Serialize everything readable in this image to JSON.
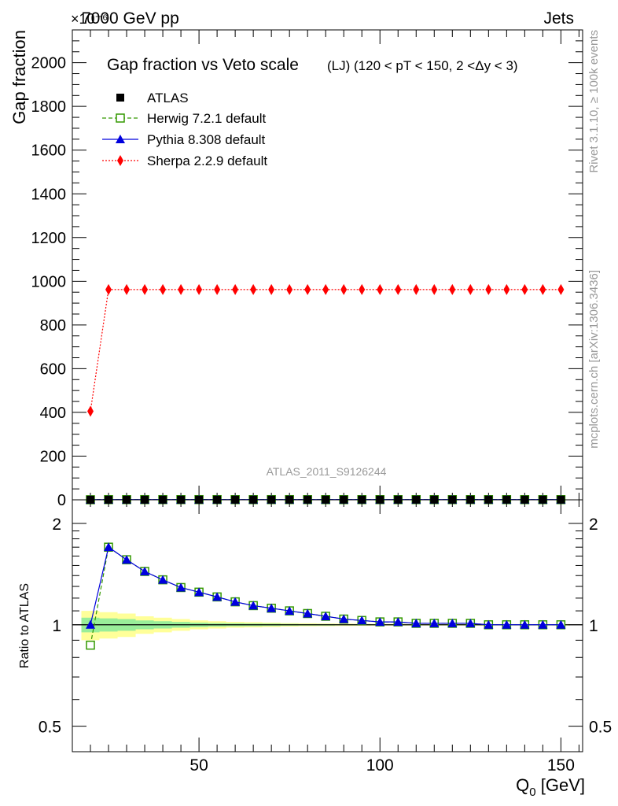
{
  "header": {
    "left": "7000 GeV pp",
    "right": "Jets",
    "exponent_label": "×10⁻⁶"
  },
  "side_text": {
    "rivet": "Rivet 3.1.10, ≥ 100k events",
    "mcplots": "mcplots.cern.ch [arXiv:1306.3436]"
  },
  "chart_data": [
    {
      "type": "line",
      "panel": "main",
      "title": "Gap fraction vs Veto scale",
      "subtitle": "(LJ) (120 < pT < 150, 2 <Δy < 3)",
      "ylabel": "Gap fraction",
      "y_multiplier_label": "×10⁻⁶",
      "xlim": [
        15,
        156
      ],
      "ylim": [
        0,
        2150
      ],
      "yticks": [
        0,
        200,
        400,
        600,
        800,
        1000,
        1200,
        1400,
        1600,
        1800,
        2000
      ],
      "xticks": [
        50,
        100,
        150
      ],
      "watermark": "ATLAS_2011_S9126244",
      "legend_position": "top-left",
      "x": [
        20,
        25,
        30,
        35,
        40,
        45,
        50,
        55,
        60,
        65,
        70,
        75,
        80,
        85,
        90,
        95,
        100,
        105,
        110,
        115,
        120,
        125,
        130,
        135,
        140,
        145,
        150
      ],
      "series": [
        {
          "name": "ATLAS",
          "color": "#000000",
          "marker": "square-filled",
          "line": "none",
          "values": [
            0.5,
            0.6,
            0.6,
            0.7,
            0.7,
            0.7,
            0.8,
            0.8,
            0.8,
            0.8,
            0.9,
            0.9,
            0.9,
            0.9,
            0.9,
            0.9,
            0.9,
            0.9,
            0.9,
            0.9,
            0.9,
            0.9,
            0.9,
            0.9,
            0.9,
            0.9,
            0.9
          ]
        },
        {
          "name": "Herwig 7.2.1 default",
          "color": "#339900",
          "marker": "square-open",
          "line": "dashed",
          "values": [
            0.4,
            1.0,
            0.9,
            1.0,
            1.0,
            0.9,
            1.0,
            1.0,
            0.9,
            0.9,
            1.0,
            1.0,
            0.9,
            0.9,
            0.9,
            0.9,
            0.9,
            0.9,
            0.9,
            0.9,
            0.9,
            0.9,
            0.9,
            0.9,
            0.9,
            0.9,
            0.9
          ]
        },
        {
          "name": "Pythia 8.308 default",
          "color": "#0000dd",
          "marker": "triangle-filled",
          "line": "solid",
          "values": [
            0.5,
            1.0,
            0.9,
            1.0,
            1.0,
            0.9,
            1.0,
            1.0,
            0.9,
            0.9,
            1.0,
            1.0,
            0.9,
            0.9,
            0.9,
            0.9,
            0.9,
            0.9,
            0.9,
            0.9,
            0.9,
            0.9,
            0.9,
            0.9,
            0.9,
            0.9,
            0.9
          ]
        },
        {
          "name": "Sherpa 2.2.9 default",
          "color": "#ff0000",
          "marker": "diamond-filled",
          "line": "dotted",
          "values": [
            405,
            962,
            962,
            962,
            962,
            962,
            962,
            962,
            962,
            962,
            962,
            962,
            962,
            962,
            962,
            962,
            962,
            962,
            962,
            962,
            962,
            962,
            962,
            962,
            962,
            962,
            962
          ]
        }
      ]
    },
    {
      "type": "line",
      "panel": "ratio",
      "ylabel": "Ratio to ATLAS",
      "xlabel": "Q_0 [GeV]",
      "xlim": [
        15,
        156
      ],
      "ylim": [
        0.42,
        2.35
      ],
      "y_scale": "log",
      "yticks": [
        0.5,
        1,
        2
      ],
      "ytick_labels": [
        "0.5",
        "1",
        "2"
      ],
      "xticks": [
        50,
        100,
        150
      ],
      "xtick_labels": [
        "50",
        "100",
        "150"
      ],
      "x": [
        20,
        25,
        30,
        35,
        40,
        45,
        50,
        55,
        60,
        65,
        70,
        75,
        80,
        85,
        90,
        95,
        100,
        105,
        110,
        115,
        120,
        125,
        130,
        135,
        140,
        145,
        150
      ],
      "band_outer": [
        0.1,
        0.09,
        0.08,
        0.06,
        0.05,
        0.04,
        0.03,
        0.025,
        0.02,
        0.018,
        0.015,
        0.012,
        0.01,
        0.009,
        0.008,
        0.007,
        0.006,
        0.006,
        0.005,
        0.005,
        0.005,
        0.005,
        0.005,
        0.005,
        0.005,
        0.005,
        0.005
      ],
      "band_inner": [
        0.05,
        0.045,
        0.04,
        0.03,
        0.025,
        0.02,
        0.015,
        0.012,
        0.01,
        0.009,
        0.008,
        0.006,
        0.005,
        0.005,
        0.004,
        0.004,
        0.003,
        0.003,
        0.003,
        0.003,
        0.003,
        0.003,
        0.003,
        0.003,
        0.003,
        0.003,
        0.003
      ],
      "series": [
        {
          "name": "Herwig 7.2.1 default",
          "color": "#339900",
          "marker": "square-open",
          "line": "dashed",
          "values": [
            0.87,
            1.7,
            1.56,
            1.44,
            1.36,
            1.29,
            1.25,
            1.21,
            1.17,
            1.14,
            1.12,
            1.1,
            1.08,
            1.06,
            1.04,
            1.03,
            1.02,
            1.02,
            1.01,
            1.01,
            1.01,
            1.01,
            1.0,
            1.0,
            1.0,
            1.0,
            1.0
          ]
        },
        {
          "name": "Pythia 8.308 default",
          "color": "#0000dd",
          "marker": "triangle-filled",
          "line": "solid",
          "values": [
            1.0,
            1.7,
            1.56,
            1.44,
            1.36,
            1.29,
            1.25,
            1.21,
            1.17,
            1.14,
            1.12,
            1.1,
            1.08,
            1.06,
            1.04,
            1.03,
            1.02,
            1.02,
            1.01,
            1.01,
            1.01,
            1.01,
            1.0,
            1.0,
            1.0,
            1.0,
            1.0
          ]
        }
      ]
    }
  ]
}
